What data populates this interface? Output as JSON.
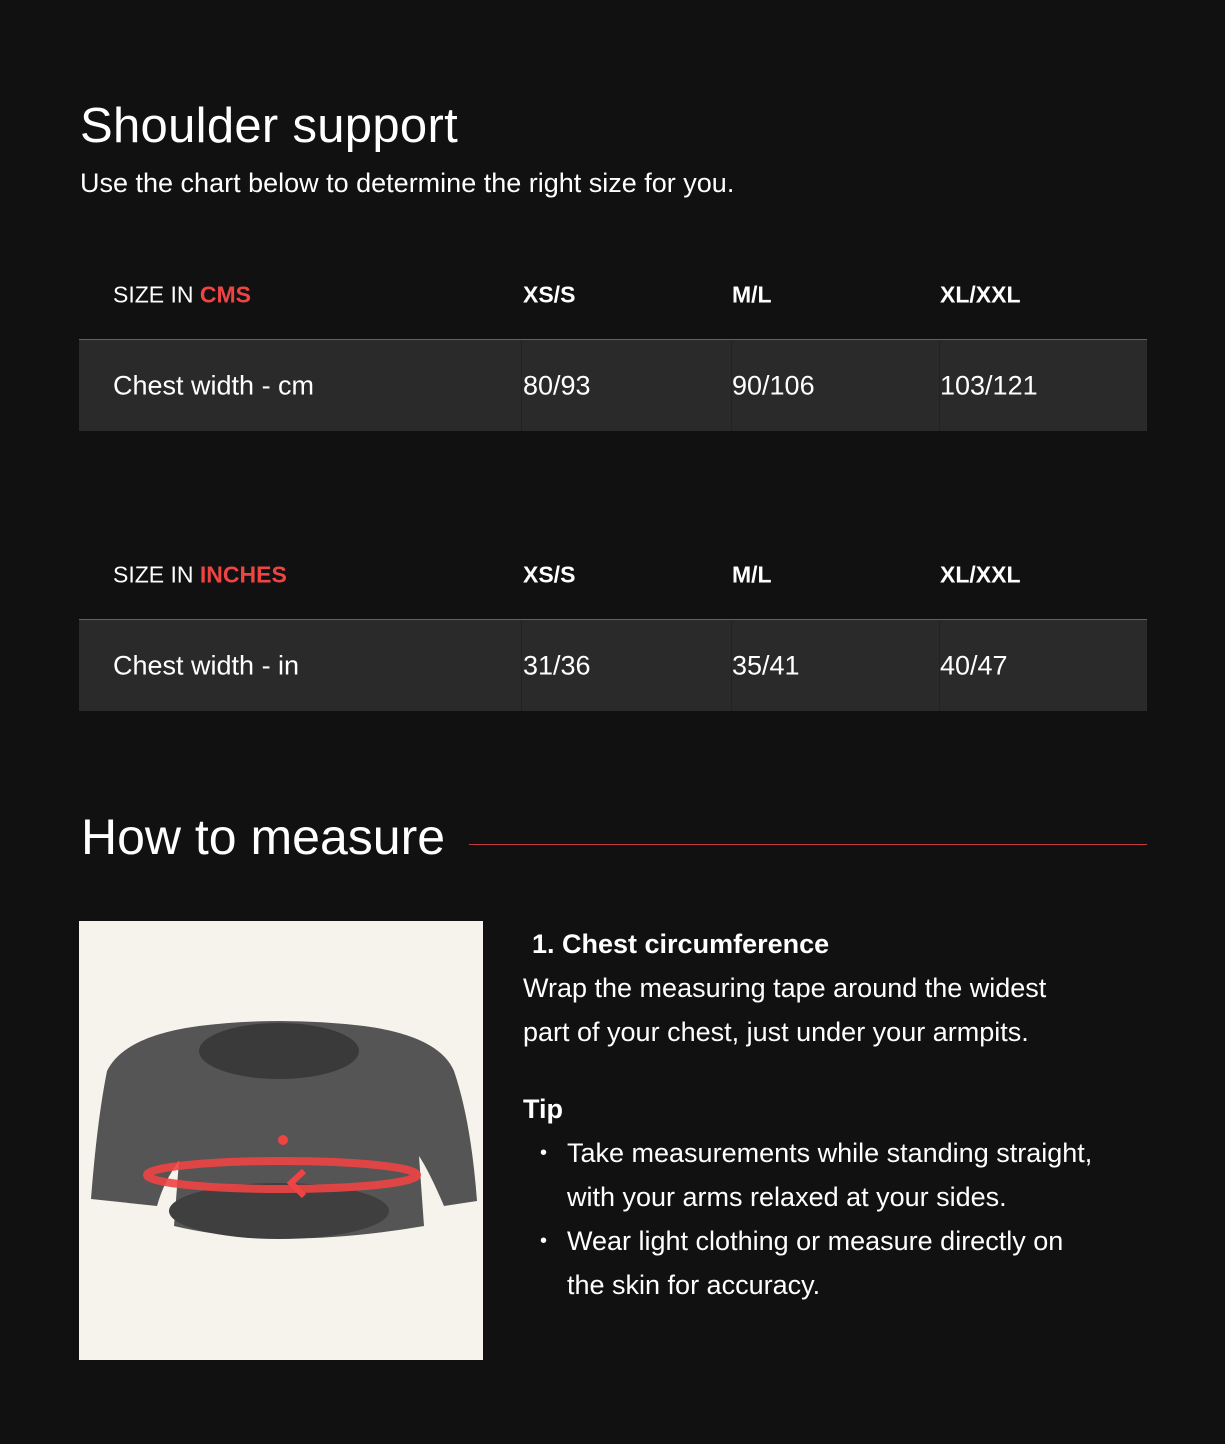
{
  "title": "Shoulder support",
  "subtitle": "Use the chart below to determine the right size for you.",
  "tables": [
    {
      "prefix": "SIZE IN ",
      "unit": "CMS",
      "sizes": [
        "XS/S",
        "M/L",
        "XL/XXL"
      ],
      "row_label": "Chest width - cm",
      "values": [
        "80/93",
        "90/106",
        "103/121"
      ]
    },
    {
      "prefix": "SIZE IN ",
      "unit": "INCHES",
      "sizes": [
        "XS/S",
        "M/L",
        "XL/XXL"
      ],
      "row_label": "Chest width - in",
      "values": [
        "31/36",
        "35/41",
        "40/47"
      ]
    }
  ],
  "measure": {
    "heading": "How to measure",
    "step_title": "1. Chest circumference",
    "step_lines": [
      "Wrap the measuring tape around the widest",
      "part of your chest, just under your armpits."
    ],
    "tip_title": "Tip",
    "tips": [
      [
        "Take measurements while standing straight,",
        "with your arms relaxed at your sides."
      ],
      [
        "Wear light clothing or measure directly on",
        "the skin for accuracy."
      ]
    ],
    "marker": "1"
  },
  "colors": {
    "accent": "#ef4444",
    "background": "#111111",
    "row": "#2a2a2a"
  }
}
